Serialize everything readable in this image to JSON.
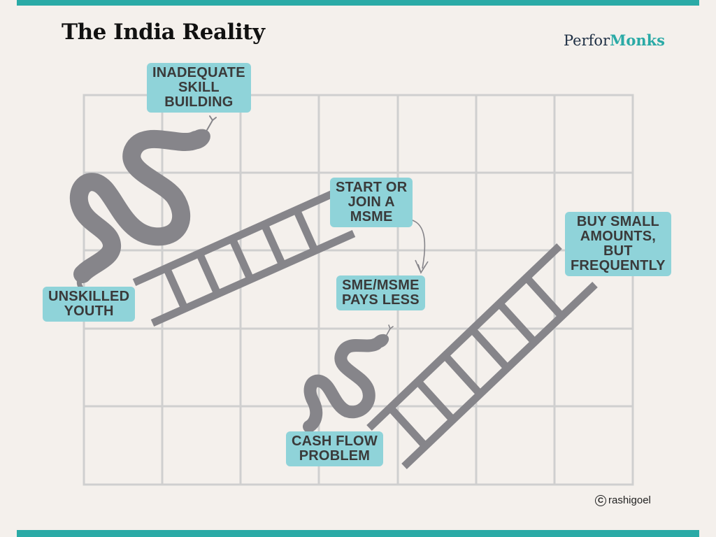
{
  "title": "The India Reality",
  "logo": {
    "part1": "Perfor",
    "part2": "Monks"
  },
  "labels": {
    "inadequate_skill": "INADEQUATE\nSKILL\nBUILDING",
    "unskilled_youth": "UNSKILLED\nYOUTH",
    "start_msme": "START OR\nJOIN A\nMSME",
    "pays_less": "SME/MSME\nPAYS LESS",
    "buy_small": "BUY SMALL\nAMOUNTS,\nBUT\nFREQUENTLY",
    "cash_flow": "CASH FLOW\nPROBLEM"
  },
  "copyright": "rashigoel",
  "colors": {
    "accent": "#2aaaa6",
    "label_bg": "#8fd3d9",
    "grid": "#cfcfcf",
    "figure": "#86858a",
    "background": "#f4f0ec"
  },
  "icons": [
    "snake-icon",
    "ladder-icon",
    "curved-arrow-icon",
    "copyright-icon"
  ]
}
